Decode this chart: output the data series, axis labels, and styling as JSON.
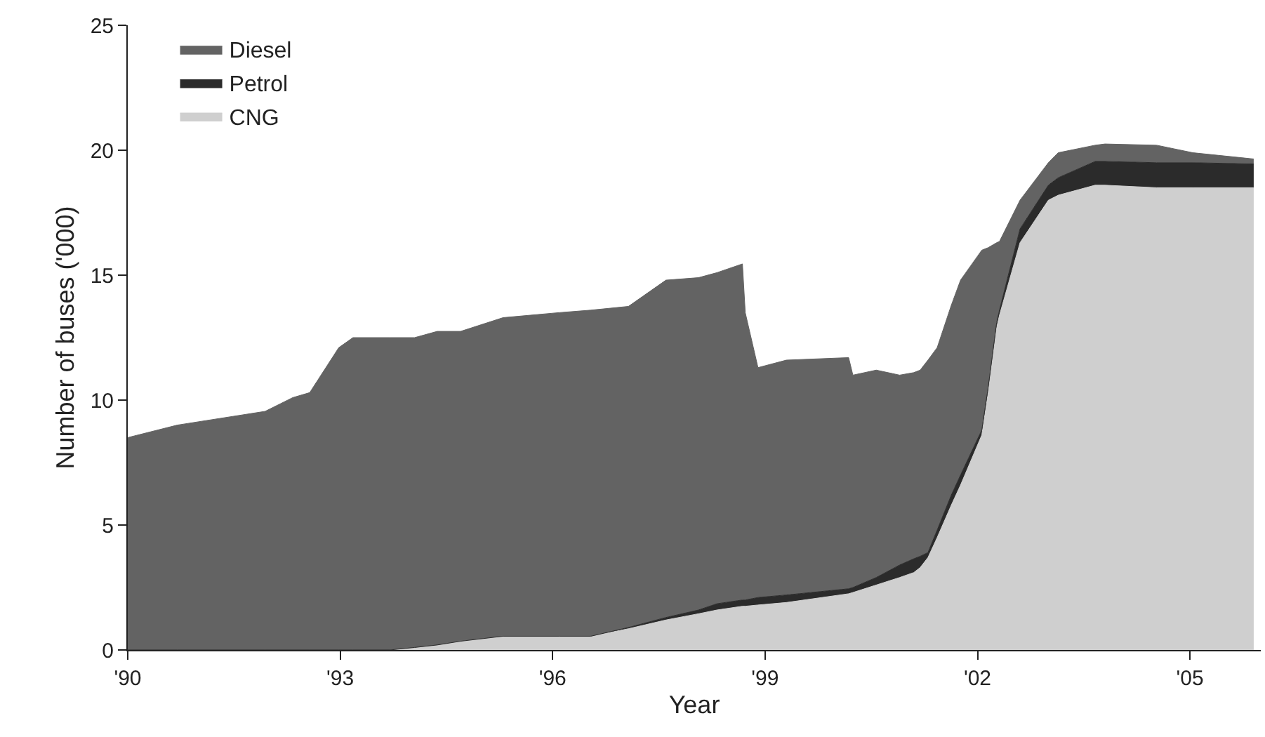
{
  "chart_data": {
    "type": "area",
    "stacked": true,
    "xlabel": "Year",
    "ylabel": "Number of buses ('000)",
    "x": [
      1990,
      1990.7,
      1991.94,
      1992.33,
      1992.57,
      1992.98,
      1993.18,
      1993.7,
      1994.05,
      1994.37,
      1994.7,
      1995.3,
      1996.09,
      1996.54,
      1997.07,
      1997.6,
      1998.06,
      1998.32,
      1998.68,
      1998.72,
      1998.9,
      1999.3,
      2000.18,
      2000.24,
      2000.57,
      2000.9,
      2001.1,
      2001.19,
      2001.3,
      2001.43,
      2001.63,
      2001.76,
      2002.06,
      2002.15,
      2002.27,
      2002.31,
      2002.6,
      2003.0,
      2003.14,
      2003.66,
      2003.8,
      2004.53,
      2005.04,
      2005.9
    ],
    "series": [
      {
        "name": "CNG",
        "color": "#cfcfcf",
        "values": [
          0,
          0,
          0,
          0,
          0,
          0,
          0,
          0,
          0.1,
          0.2,
          0.35,
          0.55,
          0.55,
          0.55,
          0.85,
          1.2,
          1.45,
          1.6,
          1.75,
          1.75,
          1.8,
          1.9,
          2.25,
          2.3,
          2.6,
          2.9,
          3.1,
          3.3,
          3.7,
          4.5,
          5.8,
          6.6,
          8.6,
          10.3,
          12.9,
          13.4,
          16.3,
          18.0,
          18.2,
          18.6,
          18.6,
          18.5,
          18.5,
          18.5
        ]
      },
      {
        "name": "Petrol",
        "color": "#2b2b2b",
        "values": [
          0,
          0,
          0,
          0,
          0,
          0,
          0,
          0,
          0,
          0,
          0,
          0,
          0,
          0,
          0.05,
          0.1,
          0.15,
          0.25,
          0.25,
          0.25,
          0.3,
          0.3,
          0.2,
          0.2,
          0.3,
          0.5,
          0.55,
          0.45,
          0.2,
          0.3,
          0.4,
          0.4,
          0.2,
          0.2,
          0.2,
          0.2,
          0.55,
          0.6,
          0.7,
          0.95,
          0.95,
          1.0,
          1.0,
          0.95
        ]
      },
      {
        "name": "Diesel",
        "color": "#636363",
        "values": [
          8.5,
          9.0,
          9.55,
          10.1,
          10.3,
          12.1,
          12.5,
          12.5,
          12.4,
          12.55,
          12.4,
          12.75,
          12.95,
          13.05,
          12.85,
          13.5,
          13.3,
          13.25,
          13.45,
          11.5,
          9.2,
          9.4,
          9.25,
          8.5,
          8.3,
          7.6,
          7.45,
          7.45,
          7.7,
          7.3,
          7.6,
          7.8,
          7.2,
          5.6,
          3.2,
          2.75,
          1.15,
          0.9,
          1.0,
          0.65,
          0.7,
          0.7,
          0.4,
          0.2
        ]
      }
    ],
    "xlim": [
      1990,
      2006
    ],
    "xticks": [
      {
        "value": 1990,
        "label": "'90"
      },
      {
        "value": 1993,
        "label": "'93"
      },
      {
        "value": 1996,
        "label": "'96"
      },
      {
        "value": 1999,
        "label": "'99"
      },
      {
        "value": 2002,
        "label": "'02"
      },
      {
        "value": 2005,
        "label": "'05"
      }
    ],
    "ylim": [
      0,
      25
    ],
    "yticks": [
      0,
      5,
      10,
      15,
      20,
      25
    ],
    "grid": false,
    "legend": "top left"
  }
}
